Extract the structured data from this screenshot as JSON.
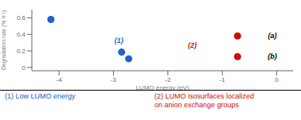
{
  "chart_data": {
    "type": "scatter",
    "xlabel": "LUMO energy (eV)",
    "ylabel": "Degradation rate (% h⁻¹)",
    "series": [
      {
        "color": "#2060cc",
        "x": [
          -4.15,
          -2.85,
          -2.72
        ],
        "y": [
          0.58,
          0.185,
          0.105
        ]
      },
      {
        "color": "#cc1100",
        "x": [
          -0.72,
          -0.72
        ],
        "y": [
          0.38,
          0.13
        ]
      }
    ],
    "xlim": [
      -4.5,
      0.3
    ],
    "ylim": [
      -0.04,
      0.7
    ],
    "xticks": [
      -4,
      -3,
      -2,
      -1,
      0
    ],
    "yticks": [
      0,
      0.2,
      0.4,
      0.6
    ],
    "annotations": [
      {
        "text": "(1)",
        "x": -2.9,
        "y": 0.33,
        "color": "#2060cc"
      },
      {
        "text": "(2)",
        "x": -1.55,
        "y": 0.27,
        "color": "#cc1100"
      },
      {
        "text": "(a)",
        "x": -0.08,
        "y": 0.385,
        "color": "#000000"
      },
      {
        "text": "(b)",
        "x": -0.08,
        "y": 0.13,
        "color": "#000000"
      }
    ],
    "captions": [
      {
        "text": "(1) Low LUMO energy",
        "color": "#2060cc"
      },
      {
        "text": "(2) LUMO isosurfaces localized\n on anion exchange groups",
        "color": "#cc1100"
      }
    ]
  }
}
